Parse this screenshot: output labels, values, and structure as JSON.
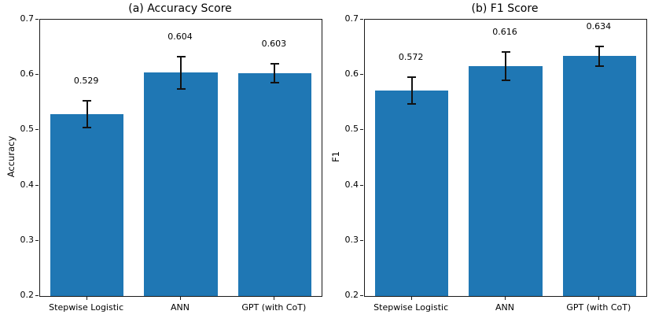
{
  "figure": {
    "background": "#ffffff",
    "bar_color": "#1f77b4",
    "error_bar_color": "#121212",
    "spine_color": "#1a1a1a",
    "text_color": "#000000"
  },
  "chart_data": [
    {
      "type": "bar",
      "title": "(a) Accuracy Score",
      "xlabel": "",
      "ylabel": "Accuracy",
      "categories": [
        "Stepwise Logistic",
        "ANN",
        "GPT (with CoT)"
      ],
      "values": [
        0.529,
        0.604,
        0.603
      ],
      "errors": [
        0.025,
        0.031,
        0.018
      ],
      "value_labels": [
        "0.529",
        "0.604",
        "0.603"
      ],
      "ylim": [
        0.2,
        0.7
      ],
      "yticks": [
        0.2,
        0.3,
        0.4,
        0.5,
        0.6,
        0.7
      ],
      "ytick_labels": [
        "0.2",
        "0.3",
        "0.4",
        "0.5",
        "0.6",
        "0.7"
      ],
      "grid": false,
      "legend": null
    },
    {
      "type": "bar",
      "title": "(b) F1 Score",
      "xlabel": "",
      "ylabel": "F1",
      "categories": [
        "Stepwise Logistic",
        "ANN",
        "GPT (with CoT)"
      ],
      "values": [
        0.572,
        0.616,
        0.634
      ],
      "errors": [
        0.026,
        0.027,
        0.019
      ],
      "value_labels": [
        "0.572",
        "0.616",
        "0.634"
      ],
      "ylim": [
        0.2,
        0.7
      ],
      "yticks": [
        0.2,
        0.3,
        0.4,
        0.5,
        0.6,
        0.7
      ],
      "ytick_labels": [
        "0.2",
        "0.3",
        "0.4",
        "0.5",
        "0.6",
        "0.7"
      ],
      "grid": false,
      "legend": null
    }
  ]
}
